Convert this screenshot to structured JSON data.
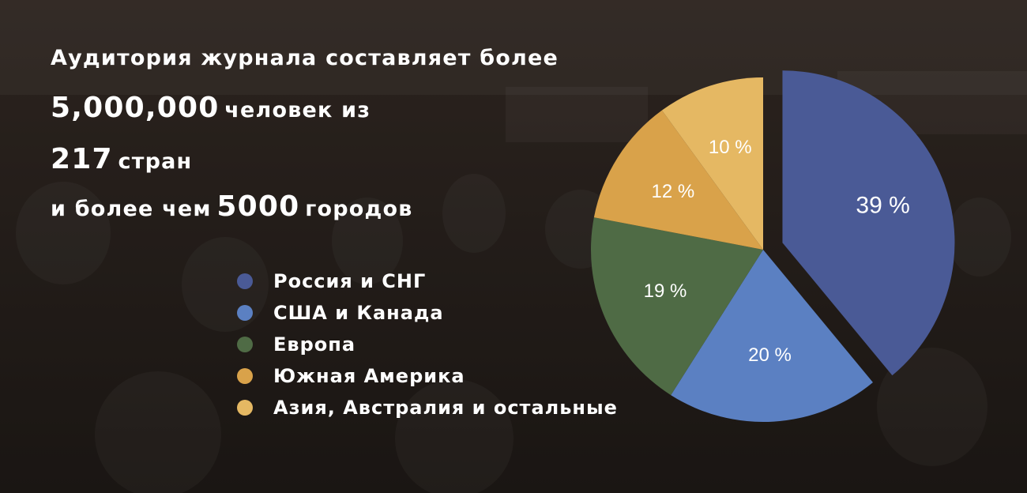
{
  "headline": {
    "line1": "Аудитория журнала составляет более",
    "line2_number": "5,000,000",
    "line2_text": "человек из",
    "line3_number": "217",
    "line3_text": "стран",
    "line4_prefix": "и более чем",
    "line4_number": "5000",
    "line4_text": "городов"
  },
  "chart_data": {
    "type": "pie",
    "title": "",
    "slices": [
      {
        "name": "Россия и СНГ",
        "value": 39,
        "label": "39 %",
        "color": "#4a5a96"
      },
      {
        "name": "США и Канада",
        "value": 20,
        "label": "20 %",
        "color": "#5b80c2"
      },
      {
        "name": "Европа",
        "value": 19,
        "label": "19 %",
        "color": "#4f6b45"
      },
      {
        "name": "Южная Америка",
        "value": 12,
        "label": "12 %",
        "color": "#d9a24a"
      },
      {
        "name": "Азия, Австралия и остальные",
        "value": 10,
        "label": "10 %",
        "color": "#e5b863"
      }
    ],
    "legend_position": "left"
  }
}
